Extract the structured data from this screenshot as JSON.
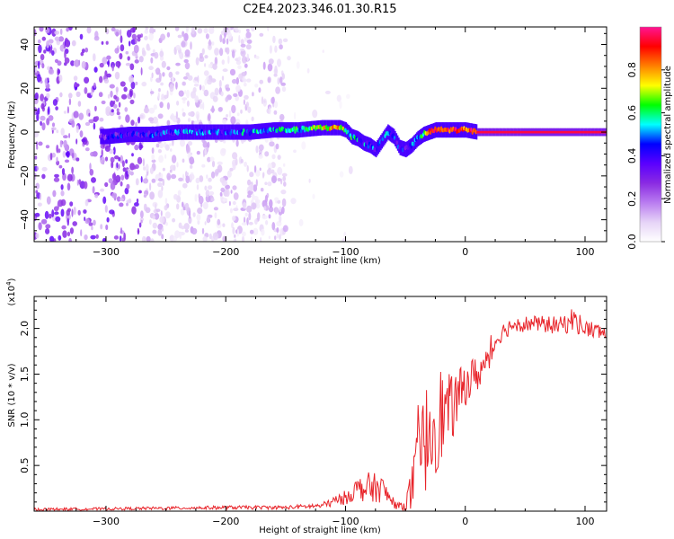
{
  "title": "C2E4.2023.346.01.30.R15",
  "chart_data": [
    {
      "type": "heatmap",
      "xlabel": "Height of straight line (km)",
      "ylabel": "Frequency (Hz)",
      "xlim": [
        -360,
        118
      ],
      "ylim": [
        -50,
        48
      ],
      "x_ticks": [
        -300,
        -200,
        -100,
        0,
        100
      ],
      "y_ticks": [
        -40,
        -20,
        0,
        20,
        40
      ],
      "colorbar": {
        "label": "Normalized spectral amplitude",
        "range": [
          0,
          1
        ],
        "ticks": [
          "0.0",
          "0.2",
          "0.4",
          "0.6",
          "0.8"
        ],
        "tick_values": [
          0.0,
          0.2,
          0.4,
          0.6,
          0.8
        ],
        "colors": [
          "#ffffff",
          "#e6d3f7",
          "#b97cf0",
          "#8a2be2",
          "#5a00ff",
          "#0000ff",
          "#00ffff",
          "#00ff00",
          "#ffff00",
          "#ff8000",
          "#ff0000",
          "#ff1493"
        ]
      },
      "center_line": {
        "x": [
          -300,
          -280,
          -260,
          -240,
          -220,
          -200,
          -180,
          -160,
          -140,
          -120,
          -105,
          -100,
          -95,
          -90,
          -85,
          -80,
          -75,
          -70,
          -65,
          -60,
          -55,
          -50,
          -45,
          -40,
          -35,
          -30,
          -25,
          -20,
          -10,
          0,
          10,
          50,
          118
        ],
        "y": [
          -2,
          -1,
          -1,
          0,
          0,
          0,
          0,
          1,
          1,
          2,
          2,
          1,
          -2,
          -3,
          -5,
          -6,
          -8,
          -4,
          0,
          -2,
          -7,
          -8,
          -6,
          -3,
          -1,
          0,
          1,
          1,
          1,
          1,
          0,
          0,
          0
        ],
        "intensity": [
          0.35,
          0.4,
          0.4,
          0.45,
          0.45,
          0.45,
          0.5,
          0.5,
          0.55,
          0.7,
          0.8,
          0.6,
          0.55,
          0.5,
          0.45,
          0.45,
          0.4,
          0.45,
          0.5,
          0.45,
          0.4,
          0.4,
          0.45,
          0.5,
          0.6,
          0.8,
          0.9,
          0.85,
          0.9,
          0.85,
          0.95,
          0.95,
          0.95
        ]
      }
    },
    {
      "type": "line",
      "xlabel": "Height of straight line (km)",
      "ylabel": "SNR (10 * v/v)",
      "y_scale_note": "(x10",
      "y_scale_exp": "4",
      "y_scale_close": ")",
      "xlim": [
        -360,
        118
      ],
      "ylim": [
        0,
        23500
      ],
      "x_ticks": [
        -300,
        -200,
        -100,
        0,
        100
      ],
      "y_ticks": [
        5000,
        10000,
        15000,
        20000
      ],
      "y_tick_labels": [
        "0.5",
        "1.0",
        "1.5",
        "2.0"
      ],
      "color": "#e8242a",
      "envelope": {
        "x": [
          -360,
          -300,
          -200,
          -150,
          -120,
          -100,
          -90,
          -80,
          -70,
          -60,
          -55,
          -50,
          -45,
          -40,
          -35,
          -30,
          -25,
          -20,
          -15,
          -10,
          -5,
          0,
          10,
          20,
          25,
          30,
          40,
          60,
          80,
          90,
          100,
          118
        ],
        "mean": [
          200,
          250,
          400,
          400,
          600,
          1500,
          2500,
          2500,
          2500,
          900,
          500,
          700,
          2200,
          5000,
          7000,
          9000,
          10000,
          10500,
          11000,
          11500,
          12500,
          14000,
          15000,
          16500,
          18500,
          19500,
          20500,
          20500,
          20300,
          21000,
          20000,
          19500
        ],
        "amplitude": [
          150,
          150,
          200,
          200,
          300,
          800,
          1200,
          1800,
          1500,
          600,
          400,
          600,
          2500,
          4000,
          5500,
          6500,
          6000,
          5500,
          4000,
          3500,
          3000,
          2500,
          2000,
          1500,
          1000,
          1000,
          900,
          900,
          1000,
          1400,
          1000,
          900
        ]
      }
    }
  ]
}
